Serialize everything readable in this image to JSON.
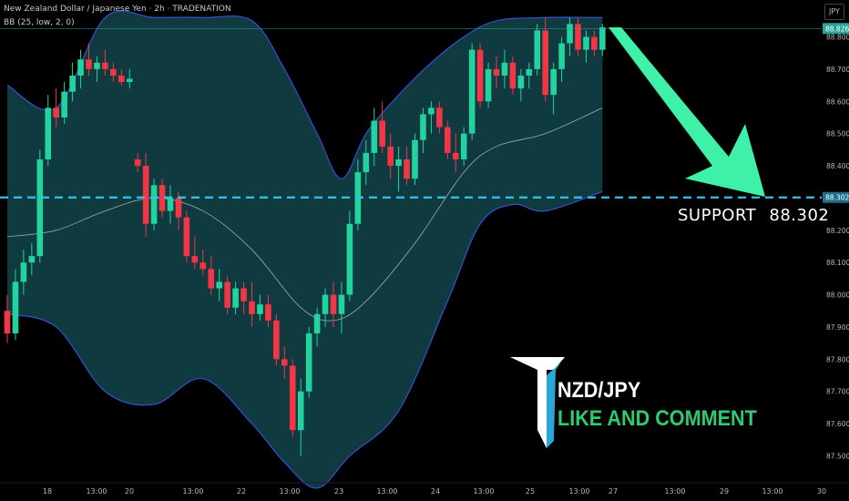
{
  "header": {
    "title": "New Zealand Dollar / Japanese Yen · 2h · TRADENATION",
    "indicator": "BB (25, low, 2, 0)",
    "currency": "JPY"
  },
  "annotations": {
    "support_label": "SUPPORT",
    "support_value": "88.302",
    "brand_pair": "NZD/JPY",
    "brand_cta": "LIKE AND COMMENT"
  },
  "colors": {
    "up": "#22d3a0",
    "down": "#f23645",
    "band_fill": "#0f3a40",
    "band_line": "#3a4fd0",
    "basis": "#c8c8c8",
    "support_line": "#34c5e8",
    "arrow": "#3ef0a8",
    "price_tag": "#26a69a"
  },
  "chart_data": {
    "type": "candlestick",
    "symbol": "NZDJPY",
    "timeframe": "2h",
    "ylim": [
      87.45,
      88.86
    ],
    "y_ticks": [
      "88.800",
      "88.700",
      "88.600",
      "88.500",
      "88.400",
      "88.300",
      "88.200",
      "88.100",
      "88.000",
      "87.900",
      "87.800",
      "87.700",
      "87.600",
      "87.500"
    ],
    "x_ticks": [
      "18",
      "13:00",
      "20",
      "13:00",
      "22",
      "13:00",
      "23",
      "13:00",
      "24",
      "13:00",
      "25",
      "13:00",
      "27",
      "13:00",
      "29",
      "13:00",
      "30"
    ],
    "last_price": "88.826",
    "support_level": 88.302,
    "support_label_tag": "88.302",
    "candles": [
      [
        87.95,
        88.0,
        87.85,
        87.88
      ],
      [
        87.88,
        88.08,
        87.86,
        88.04
      ],
      [
        88.04,
        88.14,
        88.0,
        88.1
      ],
      [
        88.1,
        88.16,
        88.06,
        88.12
      ],
      [
        88.12,
        88.45,
        88.1,
        88.42
      ],
      [
        88.42,
        88.62,
        88.4,
        88.58
      ],
      [
        88.58,
        88.64,
        88.52,
        88.55
      ],
      [
        88.55,
        88.66,
        88.53,
        88.63
      ],
      [
        88.63,
        88.72,
        88.6,
        88.68
      ],
      [
        88.68,
        88.76,
        88.64,
        88.73
      ],
      [
        88.73,
        88.78,
        88.68,
        88.7
      ],
      [
        88.7,
        88.74,
        88.66,
        88.72
      ],
      [
        88.72,
        88.76,
        88.68,
        88.7
      ],
      [
        88.7,
        88.72,
        88.66,
        88.68
      ],
      [
        88.68,
        88.7,
        88.65,
        88.66
      ],
      [
        88.66,
        88.7,
        88.64,
        88.67
      ],
      [
        88.42,
        88.44,
        88.38,
        88.4
      ],
      [
        88.4,
        88.44,
        88.18,
        88.22
      ],
      [
        88.22,
        88.36,
        88.2,
        88.34
      ],
      [
        88.34,
        88.36,
        88.24,
        88.26
      ],
      [
        88.26,
        88.34,
        88.22,
        88.3
      ],
      [
        88.3,
        88.32,
        88.2,
        88.24
      ],
      [
        88.24,
        88.26,
        88.1,
        88.12
      ],
      [
        88.12,
        88.18,
        88.08,
        88.1
      ],
      [
        88.1,
        88.14,
        88.06,
        88.08
      ],
      [
        88.08,
        88.12,
        88.0,
        88.02
      ],
      [
        88.02,
        88.08,
        87.98,
        88.04
      ],
      [
        88.04,
        88.06,
        87.94,
        87.96
      ],
      [
        87.96,
        88.04,
        87.94,
        88.02
      ],
      [
        88.02,
        88.04,
        87.94,
        87.98
      ],
      [
        87.98,
        88.04,
        87.9,
        87.94
      ],
      [
        87.94,
        88.0,
        87.92,
        87.97
      ],
      [
        87.97,
        88.0,
        87.9,
        87.92
      ],
      [
        87.92,
        87.94,
        87.78,
        87.8
      ],
      [
        87.8,
        87.84,
        87.74,
        87.78
      ],
      [
        87.78,
        87.8,
        87.56,
        87.58
      ],
      [
        87.58,
        87.74,
        87.5,
        87.7
      ],
      [
        87.7,
        87.9,
        87.68,
        87.88
      ],
      [
        87.88,
        87.96,
        87.84,
        87.94
      ],
      [
        87.94,
        88.02,
        87.9,
        88.0
      ],
      [
        88.0,
        88.04,
        87.9,
        87.94
      ],
      [
        87.94,
        88.04,
        87.88,
        88.0
      ],
      [
        88.0,
        88.26,
        87.98,
        88.22
      ],
      [
        88.22,
        88.42,
        88.2,
        88.38
      ],
      [
        88.38,
        88.48,
        88.34,
        88.44
      ],
      [
        88.44,
        88.58,
        88.4,
        88.54
      ],
      [
        88.54,
        88.6,
        88.44,
        88.46
      ],
      [
        88.46,
        88.5,
        88.36,
        88.4
      ],
      [
        88.4,
        88.46,
        88.32,
        88.42
      ],
      [
        88.42,
        88.46,
        88.34,
        88.36
      ],
      [
        88.36,
        88.5,
        88.34,
        88.48
      ],
      [
        88.48,
        88.58,
        88.44,
        88.56
      ],
      [
        88.56,
        88.6,
        88.5,
        88.58
      ],
      [
        88.58,
        88.6,
        88.5,
        88.52
      ],
      [
        88.52,
        88.54,
        88.42,
        88.44
      ],
      [
        88.44,
        88.5,
        88.38,
        88.42
      ],
      [
        88.42,
        88.52,
        88.4,
        88.5
      ],
      [
        88.5,
        88.78,
        88.48,
        88.76
      ],
      [
        88.76,
        88.78,
        88.58,
        88.6
      ],
      [
        88.6,
        88.72,
        88.58,
        88.7
      ],
      [
        88.7,
        88.74,
        88.64,
        88.68
      ],
      [
        88.68,
        88.76,
        88.64,
        88.72
      ],
      [
        88.72,
        88.74,
        88.62,
        88.64
      ],
      [
        88.64,
        88.7,
        88.6,
        88.68
      ],
      [
        88.68,
        88.72,
        88.64,
        88.7
      ],
      [
        88.7,
        88.84,
        88.68,
        88.82
      ],
      [
        88.82,
        88.86,
        88.6,
        88.62
      ],
      [
        88.62,
        88.72,
        88.56,
        88.7
      ],
      [
        88.7,
        88.8,
        88.66,
        88.78
      ],
      [
        88.78,
        88.86,
        88.74,
        88.84
      ],
      [
        88.84,
        88.86,
        88.74,
        88.76
      ],
      [
        88.76,
        88.82,
        88.72,
        88.8
      ],
      [
        88.8,
        88.82,
        88.74,
        88.76
      ],
      [
        88.76,
        88.84,
        88.74,
        88.83
      ]
    ],
    "bb_upper": [
      [
        0,
        88.65
      ],
      [
        6,
        88.58
      ],
      [
        12,
        88.86
      ],
      [
        18,
        88.86
      ],
      [
        24,
        88.86
      ],
      [
        30,
        88.85
      ],
      [
        34,
        88.7
      ],
      [
        38,
        88.5
      ],
      [
        41,
        88.36
      ],
      [
        44,
        88.5
      ],
      [
        48,
        88.62
      ],
      [
        52,
        88.72
      ],
      [
        56,
        88.8
      ],
      [
        60,
        88.85
      ],
      [
        66,
        88.86
      ],
      [
        73,
        88.86
      ]
    ],
    "bb_basis": [
      [
        0,
        88.18
      ],
      [
        6,
        88.2
      ],
      [
        12,
        88.26
      ],
      [
        18,
        88.3
      ],
      [
        24,
        88.26
      ],
      [
        30,
        88.14
      ],
      [
        36,
        87.96
      ],
      [
        40,
        87.92
      ],
      [
        44,
        87.98
      ],
      [
        50,
        88.16
      ],
      [
        56,
        88.38
      ],
      [
        60,
        88.46
      ],
      [
        66,
        88.5
      ],
      [
        73,
        88.58
      ]
    ],
    "bb_lower": [
      [
        0,
        87.94
      ],
      [
        6,
        87.9
      ],
      [
        12,
        87.7
      ],
      [
        18,
        87.66
      ],
      [
        24,
        87.74
      ],
      [
        30,
        87.6
      ],
      [
        34,
        87.48
      ],
      [
        38,
        87.4
      ],
      [
        42,
        87.5
      ],
      [
        48,
        87.64
      ],
      [
        54,
        87.98
      ],
      [
        58,
        88.22
      ],
      [
        62,
        88.28
      ],
      [
        66,
        88.26
      ],
      [
        73,
        88.32
      ]
    ],
    "grid": false,
    "legend": "none"
  }
}
